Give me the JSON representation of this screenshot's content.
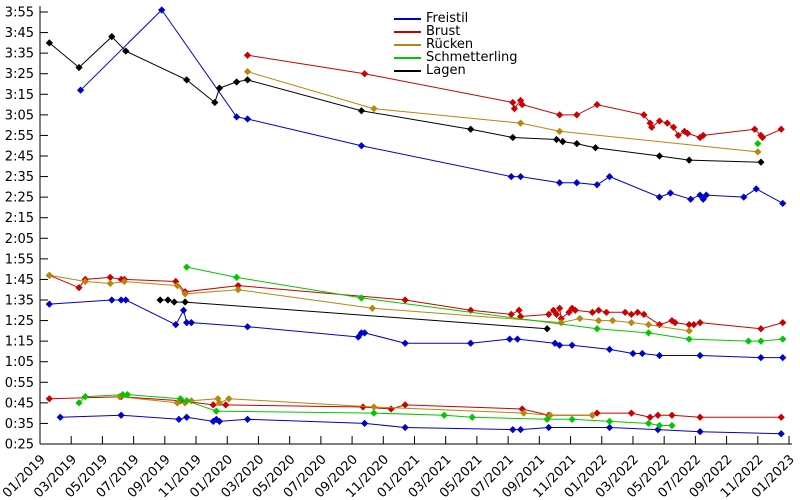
{
  "chart_data": {
    "type": "line",
    "title": "",
    "x_axis": {
      "unit": "month/year",
      "tick_labels": [
        "01/2019",
        "03/2019",
        "05/2019",
        "07/2019",
        "09/2019",
        "11/2019",
        "01/2020",
        "03/2020",
        "05/2020",
        "07/2020",
        "09/2020",
        "11/2020",
        "01/2021",
        "03/2021",
        "05/2021",
        "07/2021",
        "09/2021",
        "11/2021",
        "01/2022",
        "03/2022",
        "05/2022",
        "07/2022",
        "09/2022",
        "11/2022",
        "01/2023"
      ]
    },
    "y_axis": {
      "unit": "min:sec",
      "tick_labels": [
        "0:25",
        "0:35",
        "0:45",
        "0:55",
        "1:05",
        "1:15",
        "1:25",
        "1:35",
        "1:45",
        "1:55",
        "2:05",
        "2:15",
        "2:25",
        "2:35",
        "2:45",
        "2:55",
        "3:05",
        "3:15",
        "3:25",
        "3:35",
        "3:45",
        "3:55"
      ]
    },
    "legend": {
      "position": "top-center"
    },
    "grid": "off",
    "note_points_format": "points are [months_after_01_2019, time]",
    "series": [
      {
        "id": "freistil",
        "name": "Freistil",
        "color": "#0000cc",
        "segments": {
          "long": [
            [
              2.6,
              "3:17"
            ],
            [
              7.8,
              "3:56"
            ],
            [
              12.6,
              "3:04"
            ],
            [
              13.3,
              "3:03"
            ],
            [
              20.6,
              "2:50"
            ],
            [
              30.2,
              "2:35"
            ],
            [
              30.8,
              "2:35"
            ],
            [
              33.3,
              "2:32"
            ],
            [
              34.4,
              "2:32"
            ],
            [
              35.7,
              "2:31"
            ],
            [
              36.5,
              "2:35"
            ],
            [
              39.7,
              "2:25"
            ],
            [
              40.4,
              "2:27"
            ],
            [
              41.7,
              "2:24"
            ],
            [
              42.3,
              "2:26"
            ],
            [
              42.5,
              "2:24"
            ],
            [
              42.7,
              "2:26"
            ],
            [
              45.1,
              "2:25"
            ],
            [
              45.9,
              "2:29"
            ],
            [
              47.6,
              "2:22"
            ]
          ],
          "middle": [
            [
              0.6,
              "1:33"
            ],
            [
              4.6,
              "1:35"
            ],
            [
              5.2,
              "1:35"
            ],
            [
              5.5,
              "1:35"
            ],
            [
              8.7,
              "1:23"
            ],
            [
              9.2,
              "1:30"
            ],
            [
              9.4,
              "1:24"
            ],
            [
              9.7,
              "1:24"
            ],
            [
              13.3,
              "1:22"
            ],
            [
              20.4,
              "1:17"
            ],
            [
              20.6,
              "1:19"
            ],
            [
              20.8,
              "1:19"
            ],
            [
              23.4,
              "1:14"
            ],
            [
              27.6,
              "1:14"
            ],
            [
              30.1,
              "1:16"
            ],
            [
              30.6,
              "1:16"
            ],
            [
              33.0,
              "1:14"
            ],
            [
              33.3,
              "1:13"
            ],
            [
              34.1,
              "1:13"
            ],
            [
              36.5,
              "1:11"
            ],
            [
              38.0,
              "1:09"
            ],
            [
              38.6,
              "1:09"
            ],
            [
              39.7,
              "1:08"
            ],
            [
              42.3,
              "1:08"
            ],
            [
              46.2,
              "1:07"
            ],
            [
              47.6,
              "1:07"
            ]
          ],
          "short": [
            [
              1.3,
              "0:38"
            ],
            [
              5.2,
              "0:39"
            ],
            [
              8.9,
              "0:37"
            ],
            [
              9.4,
              "0:38"
            ],
            [
              11.1,
              "0:36"
            ],
            [
              11.3,
              "0:37"
            ],
            [
              11.5,
              "0:36"
            ],
            [
              13.3,
              "0:37"
            ],
            [
              20.8,
              "0:35"
            ],
            [
              23.4,
              "0:33"
            ],
            [
              30.3,
              "0:32"
            ],
            [
              30.8,
              "0:32"
            ],
            [
              32.6,
              "0:33"
            ],
            [
              36.5,
              "0:33"
            ],
            [
              39.6,
              "0:32"
            ],
            [
              42.3,
              "0:31"
            ],
            [
              47.5,
              "0:30"
            ]
          ]
        }
      },
      {
        "id": "brust",
        "name": "Brust",
        "color": "#cc0000",
        "segments": {
          "long": [
            [
              13.3,
              "3:34"
            ],
            [
              20.8,
              "3:25"
            ],
            [
              30.3,
              "3:11"
            ],
            [
              30.4,
              "3:08"
            ],
            [
              30.8,
              "3:12"
            ],
            [
              30.9,
              "3:10"
            ],
            [
              33.3,
              "3:05"
            ],
            [
              34.4,
              "3:05"
            ],
            [
              35.7,
              "3:10"
            ],
            [
              38.7,
              "3:05"
            ],
            [
              39.1,
              "3:01"
            ],
            [
              39.2,
              "2:59"
            ],
            [
              39.7,
              "3:02"
            ],
            [
              40.2,
              "3:01"
            ],
            [
              40.6,
              "2:59"
            ],
            [
              40.9,
              "2:55"
            ],
            [
              41.3,
              "2:57"
            ],
            [
              41.5,
              "2:56"
            ],
            [
              42.3,
              "2:54"
            ],
            [
              42.5,
              "2:55"
            ],
            [
              45.8,
              "2:58"
            ],
            [
              46.2,
              "2:55"
            ],
            [
              46.3,
              "2:54"
            ],
            [
              47.5,
              "2:58"
            ]
          ],
          "middle": [
            [
              0.6,
              "1:47"
            ],
            [
              2.5,
              "1:41"
            ],
            [
              2.9,
              "1:45"
            ],
            [
              4.5,
              "1:46"
            ],
            [
              5.2,
              "1:45"
            ],
            [
              5.4,
              "1:45"
            ],
            [
              8.7,
              "1:44"
            ],
            [
              9.3,
              "1:39"
            ],
            [
              12.7,
              "1:42"
            ],
            [
              23.4,
              "1:35"
            ],
            [
              27.6,
              "1:30"
            ],
            [
              30.2,
              "1:28"
            ],
            [
              30.7,
              "1:30"
            ],
            [
              30.8,
              "1:27"
            ],
            [
              32.6,
              "1:28"
            ],
            [
              32.9,
              "1:30"
            ],
            [
              33.1,
              "1:28"
            ],
            [
              33.3,
              "1:31"
            ],
            [
              33.4,
              "1:26"
            ],
            [
              33.9,
              "1:29"
            ],
            [
              34.1,
              "1:31"
            ],
            [
              34.3,
              "1:30"
            ],
            [
              35.4,
              "1:29"
            ],
            [
              35.8,
              "1:30"
            ],
            [
              36.3,
              "1:29"
            ],
            [
              37.5,
              "1:29"
            ],
            [
              37.9,
              "1:28"
            ],
            [
              38.3,
              "1:29"
            ],
            [
              38.7,
              "1:28"
            ],
            [
              39.7,
              "1:23"
            ],
            [
              40.5,
              "1:25"
            ],
            [
              40.7,
              "1:24"
            ],
            [
              41.6,
              "1:23"
            ],
            [
              41.9,
              "1:23"
            ],
            [
              42.3,
              "1:24"
            ],
            [
              46.2,
              "1:21"
            ],
            [
              47.6,
              "1:24"
            ]
          ],
          "short": [
            [
              0.6,
              "0:47"
            ],
            [
              5.2,
              "0:48"
            ],
            [
              9.0,
              "0:46"
            ],
            [
              11.1,
              "0:44"
            ],
            [
              11.9,
              "0:44"
            ],
            [
              20.7,
              "0:43"
            ],
            [
              22.5,
              "0:42"
            ],
            [
              23.4,
              "0:44"
            ],
            [
              30.9,
              "0:42"
            ],
            [
              32.6,
              "0:39"
            ],
            [
              35.4,
              "0:39"
            ],
            [
              35.7,
              "0:40"
            ],
            [
              37.9,
              "0:40"
            ],
            [
              39.1,
              "0:38"
            ],
            [
              39.6,
              "0:39"
            ],
            [
              40.5,
              "0:39"
            ],
            [
              42.3,
              "0:38"
            ],
            [
              47.5,
              "0:38"
            ]
          ]
        }
      },
      {
        "id": "ruecken",
        "name": "Rücken",
        "color": "#b8860b",
        "segments": {
          "long": [
            [
              13.3,
              "3:26"
            ],
            [
              21.4,
              "3:08"
            ],
            [
              30.8,
              "3:01"
            ],
            [
              33.3,
              "2:57"
            ],
            [
              46.0,
              "2:47"
            ]
          ],
          "middle": [
            [
              0.6,
              "1:47"
            ],
            [
              2.9,
              "1:44"
            ],
            [
              4.5,
              "1:43"
            ],
            [
              5.4,
              "1:44"
            ],
            [
              8.8,
              "1:42"
            ],
            [
              9.3,
              "1:38"
            ],
            [
              12.7,
              "1:40"
            ],
            [
              21.3,
              "1:31"
            ],
            [
              33.4,
              "1:24"
            ],
            [
              34.6,
              "1:26"
            ],
            [
              35.8,
              "1:25"
            ],
            [
              36.7,
              "1:25"
            ],
            [
              37.9,
              "1:24"
            ],
            [
              39.0,
              "1:23"
            ],
            [
              41.6,
              "1:20"
            ]
          ],
          "short": [
            [
              5.1,
              "0:48"
            ],
            [
              8.8,
              "0:45"
            ],
            [
              9.3,
              "0:45"
            ],
            [
              9.7,
              "0:46"
            ],
            [
              11.4,
              "0:47"
            ],
            [
              11.5,
              "0:45"
            ],
            [
              12.1,
              "0:47"
            ],
            [
              21.4,
              "0:43"
            ],
            [
              31.0,
              "0:40"
            ],
            [
              32.7,
              "0:39"
            ],
            [
              35.4,
              "0:39"
            ]
          ]
        }
      },
      {
        "id": "schmetterling",
        "name": "Schmetterling",
        "color": "#00c800",
        "segments": {
          "long": [
            [
              46.0,
              "2:51"
            ]
          ],
          "middle": [
            [
              9.4,
              "1:51"
            ],
            [
              12.6,
              "1:46"
            ],
            [
              20.6,
              "1:36"
            ],
            [
              35.7,
              "1:21"
            ],
            [
              39.0,
              "1:19"
            ],
            [
              41.6,
              "1:16"
            ],
            [
              45.4,
              "1:15"
            ],
            [
              46.2,
              "1:15"
            ],
            [
              47.6,
              "1:16"
            ]
          ],
          "short": [
            [
              2.5,
              "0:45"
            ],
            [
              2.9,
              "0:48"
            ],
            [
              5.3,
              "0:49"
            ],
            [
              5.6,
              "0:49"
            ],
            [
              9.0,
              "0:47"
            ],
            [
              9.4,
              "0:46"
            ],
            [
              11.3,
              "0:41"
            ],
            [
              21.4,
              "0:40"
            ],
            [
              25.9,
              "0:39"
            ],
            [
              27.7,
              "0:38"
            ],
            [
              32.5,
              "0:37"
            ],
            [
              34.1,
              "0:37"
            ],
            [
              36.5,
              "0:36"
            ],
            [
              39.0,
              "0:35"
            ],
            [
              39.7,
              "0:34"
            ],
            [
              40.5,
              "0:34"
            ]
          ]
        }
      },
      {
        "id": "lagen",
        "name": "Lagen",
        "color": "#000000",
        "segments": {
          "long": [
            [
              0.6,
              "3:40"
            ],
            [
              2.5,
              "3:28"
            ],
            [
              4.6,
              "3:43"
            ],
            [
              5.5,
              "3:36"
            ],
            [
              9.4,
              "3:22"
            ],
            [
              11.2,
              "3:11"
            ],
            [
              11.5,
              "3:18"
            ],
            [
              12.6,
              "3:21"
            ],
            [
              13.3,
              "3:22"
            ],
            [
              20.6,
              "3:07"
            ],
            [
              27.6,
              "2:58"
            ],
            [
              30.3,
              "2:54"
            ],
            [
              33.1,
              "2:53"
            ],
            [
              33.5,
              "2:52"
            ],
            [
              34.4,
              "2:51"
            ],
            [
              35.6,
              "2:49"
            ],
            [
              39.7,
              "2:45"
            ],
            [
              41.6,
              "2:43"
            ],
            [
              46.2,
              "2:42"
            ]
          ],
          "middle": [
            [
              7.7,
              "1:35"
            ],
            [
              8.2,
              "1:35"
            ],
            [
              8.6,
              "1:34"
            ],
            [
              9.3,
              "1:34"
            ],
            [
              32.5,
              "1:21"
            ]
          ]
        }
      }
    ]
  }
}
